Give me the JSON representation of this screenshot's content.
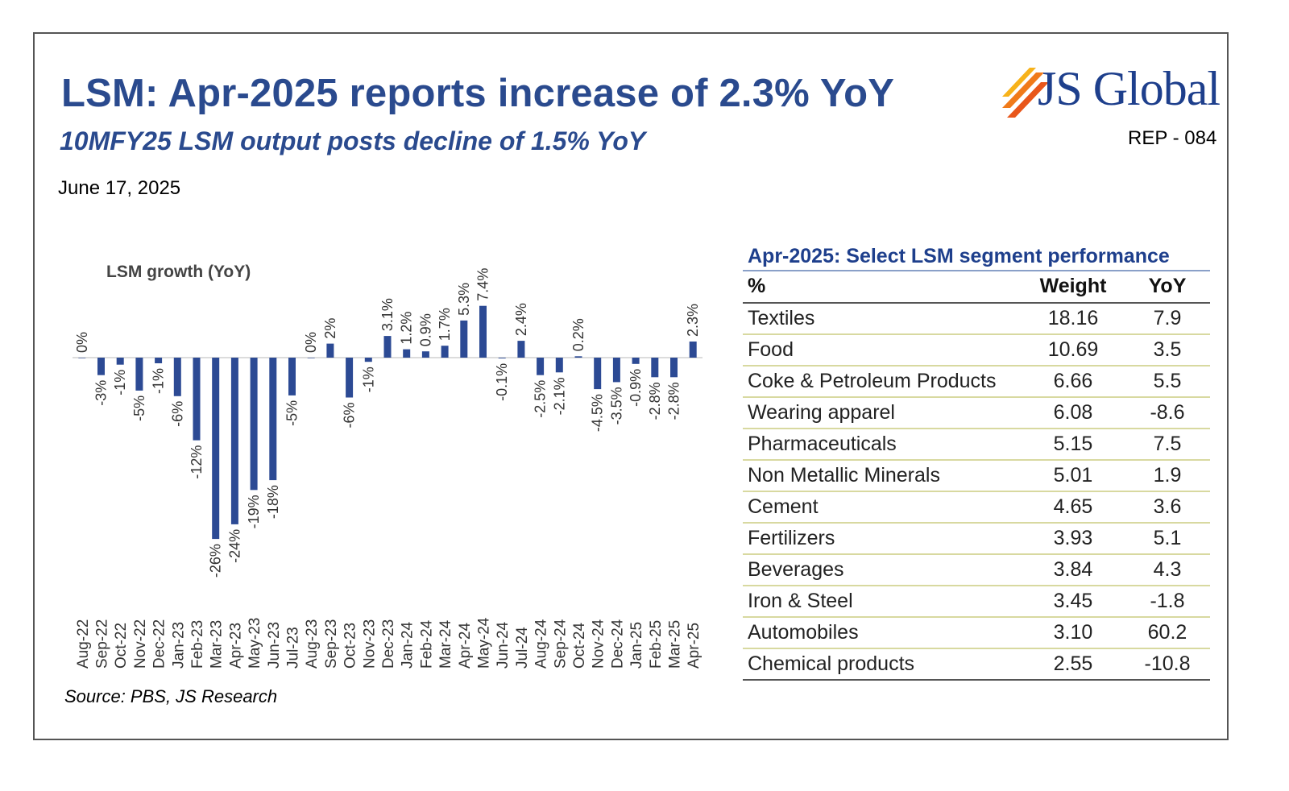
{
  "header": {
    "title": "LSM: Apr-2025 reports increase of 2.3% YoY",
    "subtitle": "10MFY25 LSM output posts decline of 1.5% YoY",
    "date": "June 17, 2025",
    "logo_text": "JS Global",
    "report_code": "REP - 084"
  },
  "source": "Source: PBS, JS Research",
  "colors": {
    "title": "#2a4a8e",
    "bar": "#2c4a94",
    "logo_orange": "#f07a1a",
    "table_rule": "#d8d9a0"
  },
  "chart_data": {
    "type": "bar",
    "title": "LSM growth (YoY)",
    "xlabel": "",
    "ylabel": "",
    "ylim": [
      -26,
      7.4
    ],
    "categories": [
      "Aug-22",
      "Sep-22",
      "Oct-22",
      "Nov-22",
      "Dec-22",
      "Jan-23",
      "Feb-23",
      "Mar-23",
      "Apr-23",
      "May-23",
      "Jun-23",
      "Jul-23",
      "Aug-23",
      "Sep-23",
      "Oct-23",
      "Nov-23",
      "Dec-23",
      "Jan-24",
      "Feb-24",
      "Mar-24",
      "Apr-24",
      "May-24",
      "Jun-24",
      "Jul-24",
      "Aug-24",
      "Sep-24",
      "Oct-24",
      "Nov-24",
      "Dec-24",
      "Jan-25",
      "Feb-25",
      "Mar-25",
      "Apr-25"
    ],
    "values": [
      0,
      -2.5,
      -1,
      -4.7,
      -0.8,
      -5.5,
      -11.8,
      -25.9,
      -23.8,
      -18.9,
      -17.5,
      -5.4,
      0,
      2,
      -5.7,
      -0.6,
      3.1,
      1.2,
      0.9,
      1.7,
      5.3,
      7.4,
      -0.1,
      2.4,
      -2.5,
      -2.1,
      0.2,
      -4.5,
      -3.5,
      -0.9,
      -2.8,
      -2.8,
      2.3
    ],
    "labels": [
      "0%",
      "-3%",
      "-1%",
      "-5%",
      "-1%",
      "-6%",
      "-12%",
      "-26%",
      "-24%",
      "-19%",
      "-18%",
      "-5%",
      "0%",
      "2%",
      "-6%",
      "-1%",
      "3.1%",
      "1.2%",
      "0.9%",
      "1.7%",
      "5.3%",
      "7.4%",
      "-0.1%",
      "2.4%",
      "-2.5%",
      "-2.1%",
      "0.2%",
      "-4.5%",
      "-3.5%",
      "-0.9%",
      "-2.8%",
      "-2.8%",
      "2.3%"
    ]
  },
  "table": {
    "title": "Apr-2025: Select LSM segment performance",
    "headers": [
      "%",
      "Weight",
      "YoY"
    ],
    "rows": [
      [
        "Textiles",
        "18.16",
        "7.9"
      ],
      [
        "Food",
        "10.69",
        "3.5"
      ],
      [
        "Coke & Petroleum Products",
        "6.66",
        "5.5"
      ],
      [
        "Wearing apparel",
        "6.08",
        "-8.6"
      ],
      [
        "Pharmaceuticals",
        "5.15",
        "7.5"
      ],
      [
        "Non Metallic Minerals",
        "5.01",
        "1.9"
      ],
      [
        "Cement",
        "4.65",
        "3.6"
      ],
      [
        "Fertilizers",
        "3.93",
        "5.1"
      ],
      [
        "Beverages",
        "3.84",
        "4.3"
      ],
      [
        "Iron & Steel",
        "3.45",
        "-1.8"
      ],
      [
        "Automobiles",
        "3.10",
        "60.2"
      ],
      [
        "Chemical products",
        "2.55",
        "-10.8"
      ]
    ]
  }
}
